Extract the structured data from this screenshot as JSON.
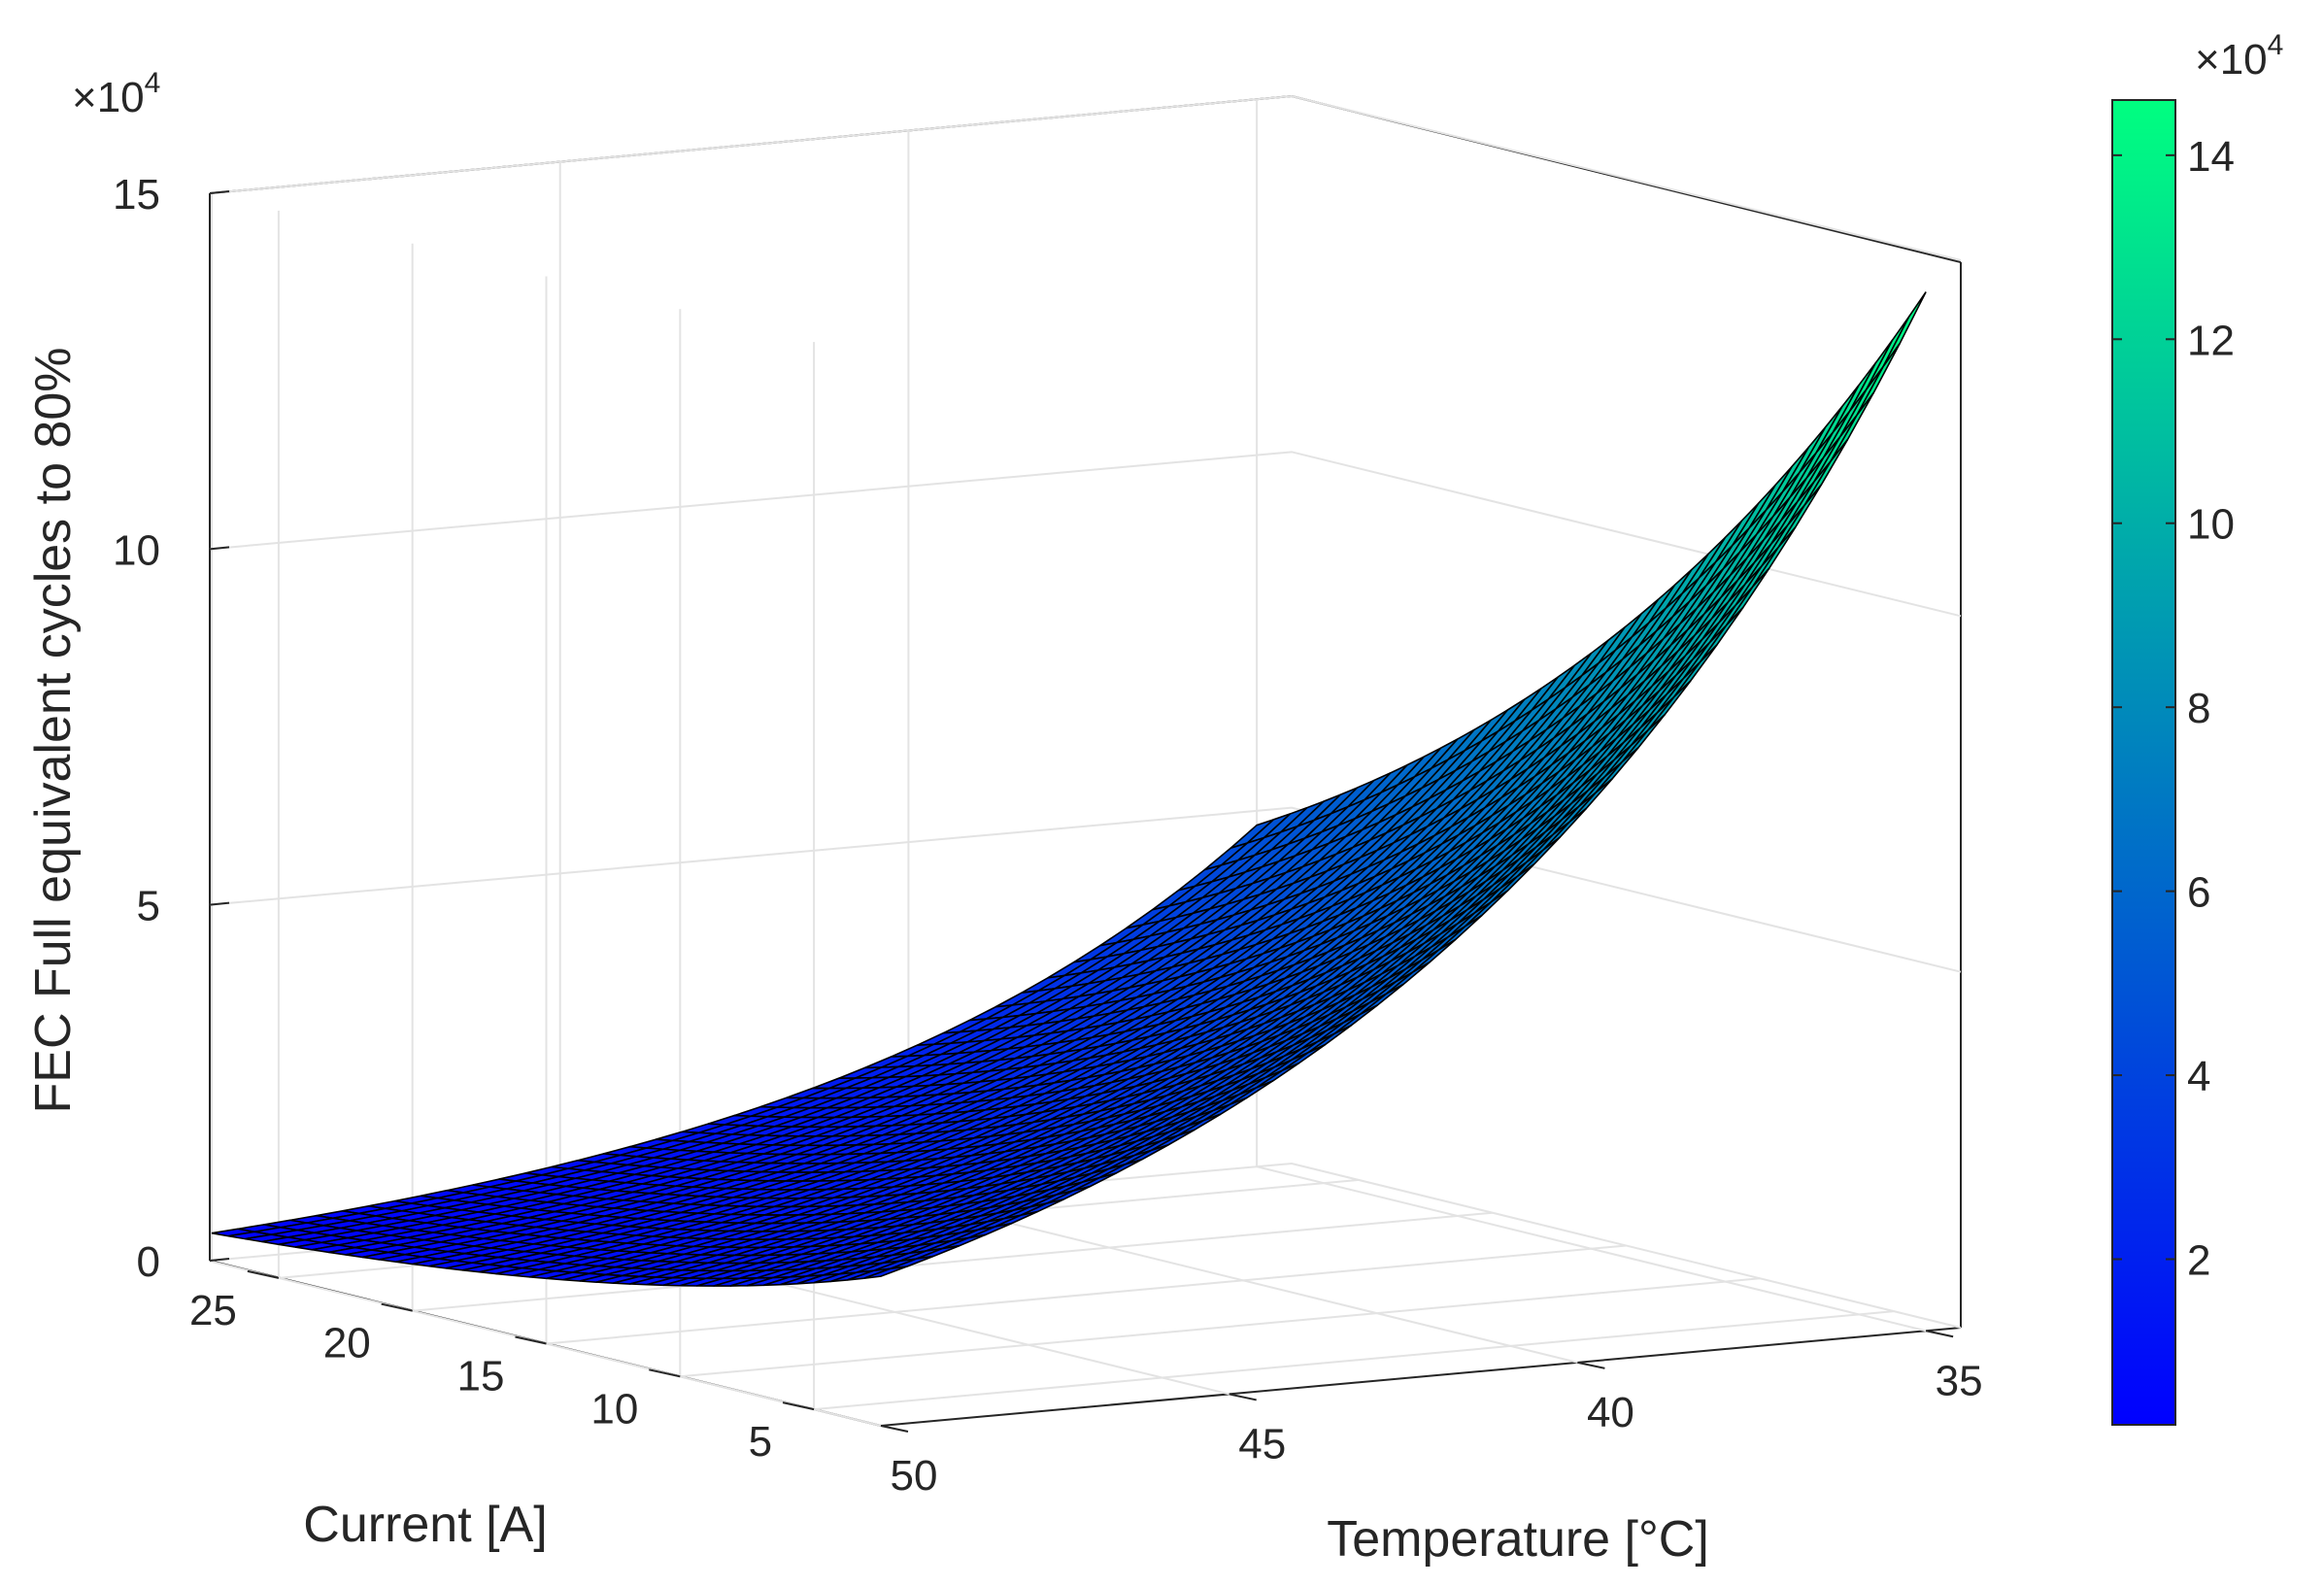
{
  "chart_data": {
    "type": "surface",
    "zlabel": "FEC Full equivalent cycles to 80%",
    "xlabel": "Temperature [°C]",
    "ylabel": "Current [A]",
    "axis_exponent_label": "×10",
    "axis_exponent_power": "4",
    "x_ticks": [
      "35",
      "40",
      "45",
      "50"
    ],
    "y_ticks": [
      "5",
      "10",
      "15",
      "20",
      "25"
    ],
    "z_ticks": [
      "0",
      "5",
      "10",
      "15"
    ],
    "xlim": [
      34.5,
      50
    ],
    "ylim": [
      2.5,
      27.5
    ],
    "zlim": [
      0,
      150000
    ],
    "grid": true,
    "colormap": "winter",
    "colormap_stops": [
      "#0000ff",
      "#00ff80"
    ],
    "mesh_color": "#000000",
    "surface_grid_size": 41,
    "corners": [
      {
        "temperature": 35,
        "current": 2.5,
        "fec": 146000
      },
      {
        "temperature": 35,
        "current": 27.5,
        "fec": 48000
      },
      {
        "temperature": 50,
        "current": 2.5,
        "fec": 21000
      },
      {
        "temperature": 50,
        "current": 27.5,
        "fec": 4000
      }
    ],
    "colorbar": {
      "ticks": [
        "2",
        "4",
        "6",
        "8",
        "10",
        "12",
        "14"
      ],
      "range": [
        2000,
        146000
      ],
      "exponent_label": "×10",
      "exponent_power": "4"
    }
  }
}
